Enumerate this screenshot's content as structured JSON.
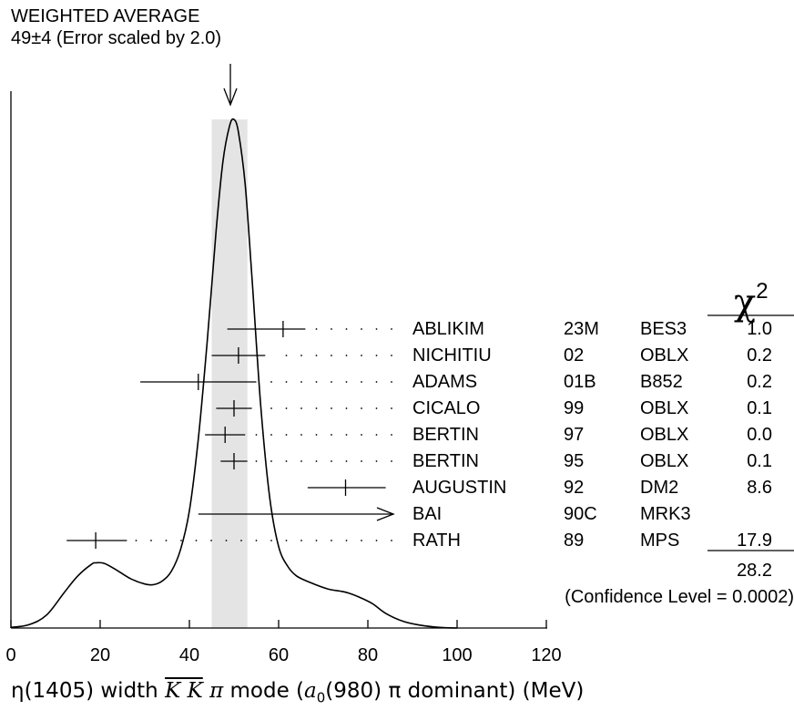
{
  "chart_data": {
    "type": "ideogram",
    "title_line1": "WEIGHTED AVERAGE",
    "title_line2": "49±4 (Error scaled by 2.0)",
    "weighted_average": {
      "value": 49,
      "error": 4,
      "band": [
        45,
        53
      ]
    },
    "xlim": [
      0,
      120
    ],
    "x_ticks": [
      0,
      20,
      40,
      60,
      80,
      100,
      120
    ],
    "x_tick_labels": [
      "0",
      "20",
      "40",
      "60",
      "80",
      "100",
      "120"
    ],
    "xlabel": {
      "pre": "η(1405) width ",
      "kk": "K K",
      "pi": "π",
      "mode": " mode (",
      "a0": "a",
      "a0_sub": "0",
      "post": "(980) π dominant) (MeV)"
    },
    "chi2_header": "χ",
    "chi2_header_sup": "2",
    "measurements": [
      {
        "author": "ABLIKIM",
        "year": "23M",
        "experiment": "BES3",
        "value": 61,
        "low": 48.5,
        "high": 66,
        "chi2": "1.0"
      },
      {
        "author": "NICHITIU",
        "year": "02",
        "experiment": "OBLX",
        "value": 51,
        "low": 45,
        "high": 57,
        "chi2": "0.2"
      },
      {
        "author": "ADAMS",
        "year": "01B",
        "experiment": "B852",
        "value": 42,
        "low": 29,
        "high": 55,
        "chi2": "0.2"
      },
      {
        "author": "CICALO",
        "year": "99",
        "experiment": "OBLX",
        "value": 50,
        "low": 46,
        "high": 54,
        "chi2": "0.1"
      },
      {
        "author": "BERTIN",
        "year": "97",
        "experiment": "OBLX",
        "value": 48,
        "low": 43.5,
        "high": 52.5,
        "chi2": "0.0"
      },
      {
        "author": "BERTIN",
        "year": "95",
        "experiment": "OBLX",
        "value": 50,
        "low": 47,
        "high": 53,
        "chi2": "0.1"
      },
      {
        "author": "AUGUSTIN",
        "year": "92",
        "experiment": "DM2",
        "value": 75,
        "low": 66.5,
        "high": 84,
        "chi2": "8.6"
      },
      {
        "author": "BAI",
        "year": "90C",
        "experiment": "MRK3",
        "value": 42,
        "upper_limit": true,
        "chi2": ""
      },
      {
        "author": "RATH",
        "year": "89",
        "experiment": "MPS",
        "value": 19,
        "low": 12.5,
        "high": 26,
        "chi2": "17.9"
      }
    ],
    "chi2_total": "28.2",
    "confidence_level": "(Confidence Level = 0.0002)",
    "ideogram_curve": [
      [
        0,
        0.2
      ],
      [
        4,
        1
      ],
      [
        8,
        4
      ],
      [
        12,
        11
      ],
      [
        15,
        16
      ],
      [
        18,
        19.5
      ],
      [
        19,
        20
      ],
      [
        21,
        19.8
      ],
      [
        24,
        17.5
      ],
      [
        27,
        15
      ],
      [
        30,
        13.5
      ],
      [
        32,
        13.3
      ],
      [
        34,
        14.5
      ],
      [
        36,
        17.5
      ],
      [
        38,
        24
      ],
      [
        40,
        36
      ],
      [
        42,
        58
      ],
      [
        44,
        88
      ],
      [
        46,
        122
      ],
      [
        47.5,
        143
      ],
      [
        49,
        154
      ],
      [
        50,
        156
      ],
      [
        51,
        152
      ],
      [
        52.5,
        136
      ],
      [
        54,
        108
      ],
      [
        56,
        68
      ],
      [
        58,
        40
      ],
      [
        60,
        25
      ],
      [
        62,
        19
      ],
      [
        64,
        16
      ],
      [
        67,
        14
      ],
      [
        71,
        12
      ],
      [
        75,
        11
      ],
      [
        78,
        9.5
      ],
      [
        81,
        7.5
      ],
      [
        84,
        4.5
      ],
      [
        88,
        2
      ],
      [
        92,
        0.8
      ],
      [
        96,
        0.2
      ],
      [
        100,
        0
      ]
    ]
  }
}
